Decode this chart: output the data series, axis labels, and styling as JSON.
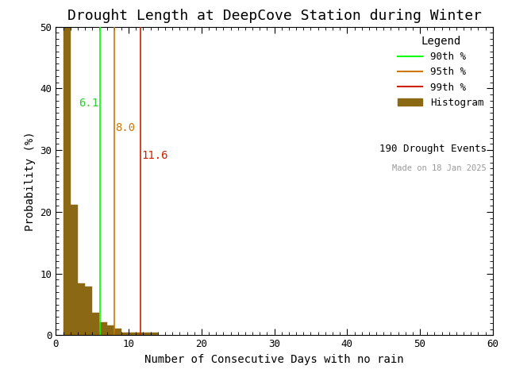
{
  "title": "Drought Length at DeepCove Station during Winter",
  "xlabel": "Number of Consecutive Days with no rain",
  "ylabel": "Probability (%)",
  "xlim": [
    0,
    60
  ],
  "ylim": [
    0,
    50
  ],
  "xticks": [
    0,
    10,
    20,
    30,
    40,
    50,
    60
  ],
  "yticks": [
    0,
    10,
    20,
    30,
    40,
    50
  ],
  "bar_color": "#8B6914",
  "bar_edge_color": "#8B6914",
  "histogram_probabilities": [
    50.0,
    21.1,
    8.4,
    7.9,
    3.7,
    2.1,
    1.6,
    1.1,
    0.5,
    0.5,
    0.5,
    0.5,
    0.5,
    0.0,
    0.0,
    0.0
  ],
  "n_drought_events": 190,
  "percentile_90": 6.1,
  "percentile_95": 8.0,
  "percentile_99": 11.6,
  "color_90": "#00FF00",
  "color_95": "#CC7700",
  "color_99": "#CC2200",
  "color_90_text": "#33CC33",
  "color_95_text": "#CC7700",
  "color_99_text": "#CC2200",
  "legend_title": "Legend",
  "made_on_text": "Made on 18 Jan 2025",
  "background_color": "#ffffff",
  "title_fontsize": 13,
  "axis_fontsize": 10,
  "tick_fontsize": 9,
  "annotation_fontsize": 10,
  "legend_fontsize": 9,
  "p90_text": "6.1",
  "p95_text": "8.0",
  "p99_text": "11.6"
}
